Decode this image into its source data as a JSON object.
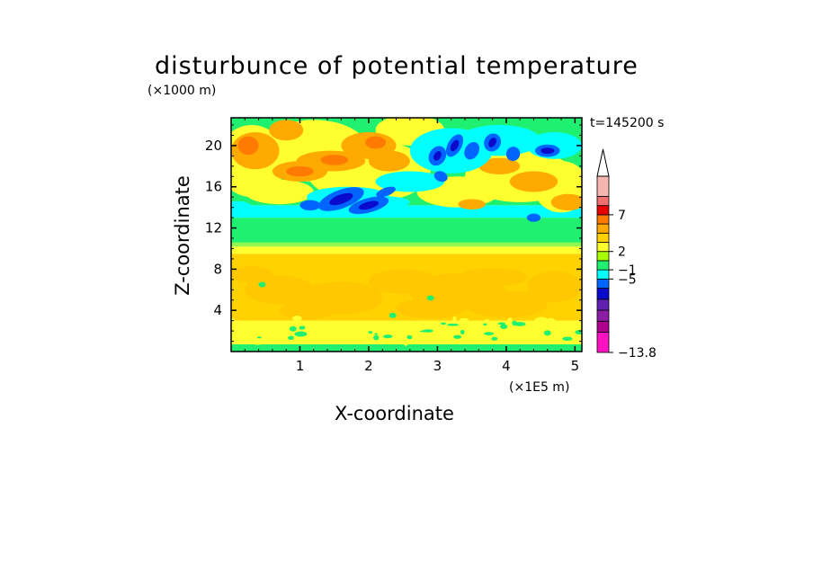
{
  "chart_data": {
    "type": "heatmap",
    "title": "disturbunce of potential temperature",
    "time_label": "t=145200 s",
    "xlabel": "X-coordinate",
    "ylabel": "Z-coordinate",
    "x_unit": "(×1E5 m)",
    "y_unit": "(×1000 m)",
    "xlim": [
      0,
      5.1
    ],
    "ylim": [
      0,
      22.7
    ],
    "x_ticks": [
      1,
      2,
      3,
      4,
      5
    ],
    "y_ticks": [
      4,
      8,
      12,
      16,
      20
    ],
    "colorbar": {
      "levels": [
        -13.8,
        -5,
        -1,
        2,
        7
      ],
      "colors": [
        "#ff10c0",
        "#b00090",
        "#8c1ea6",
        "#6020b0",
        "#0a0acc",
        "#0064ff",
        "#00ffff",
        "#20f070",
        "#a8ff00",
        "#ffff30",
        "#ffd200",
        "#ffaa00",
        "#ff7a00",
        "#e80000",
        "#f07070",
        "#f6b6b0"
      ],
      "extend": "max"
    },
    "bands": [
      {
        "z": [
          0,
          0.7
        ],
        "value": 0,
        "label": "green"
      },
      {
        "z": [
          0.7,
          3
        ],
        "value": 1.5,
        "label": "yellow"
      },
      {
        "z": [
          3,
          9.5
        ],
        "value": 2.5,
        "label": "orange-yellow"
      },
      {
        "z": [
          9.5,
          10.2
        ],
        "value": 1,
        "label": "yellow"
      },
      {
        "z": [
          10.2,
          13
        ],
        "value": -0.3,
        "label": "green"
      },
      {
        "z": [
          13,
          14.2
        ],
        "value": -1.5,
        "label": "cyan"
      },
      {
        "z": [
          14.2,
          22.7
        ],
        "value": 0.5,
        "label": "mixed"
      }
    ]
  }
}
